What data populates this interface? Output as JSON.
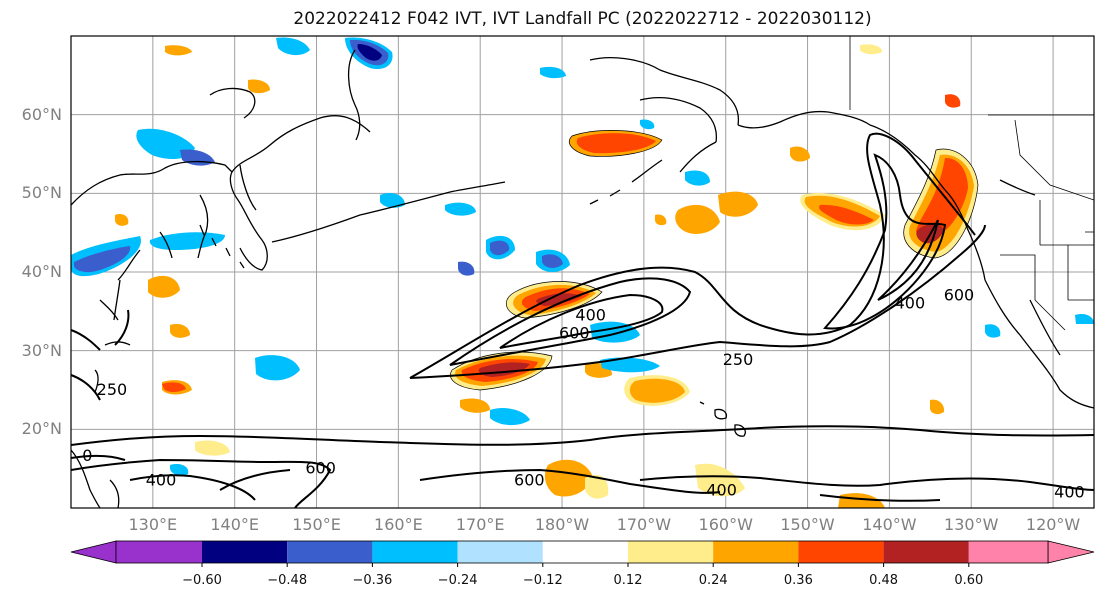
{
  "title": "2022022412 F042 IVT, IVT Landfall PC (2022022712 - 2022030112)",
  "map": {
    "lon_ticks": [
      "130°E",
      "140°E",
      "150°E",
      "160°E",
      "170°E",
      "180°W",
      "170°W",
      "160°W",
      "150°W",
      "140°W",
      "130°W",
      "120°W"
    ],
    "lat_ticks": [
      "60°N",
      "50°N",
      "40°N",
      "30°N",
      "20°N"
    ],
    "contour_levels": [
      250,
      400,
      600
    ],
    "contour_labels": [
      {
        "text": "400",
        "lon": -176.5,
        "lat": 34.5
      },
      {
        "text": "600",
        "lon": -178.5,
        "lat": 32.2
      },
      {
        "text": "250",
        "lon": -158.5,
        "lat": 28.8
      },
      {
        "text": "400",
        "lon": -137.5,
        "lat": 36.0
      },
      {
        "text": "600",
        "lon": -131.5,
        "lat": 37.0
      },
      {
        "text": "250",
        "lon": 125.0,
        "lat": 25.0
      },
      {
        "text": "400",
        "lon": 131.0,
        "lat": 13.5
      },
      {
        "text": "600",
        "lon": 150.5,
        "lat": 15.0
      },
      {
        "text": "600",
        "lon": 176.0,
        "lat": 13.5
      },
      {
        "text": "400",
        "lon": -160.5,
        "lat": 12.2
      },
      {
        "text": "400",
        "lon": -118.0,
        "lat": 12.0
      },
      {
        "text": "0",
        "lon": 122.0,
        "lat": 16.6
      }
    ],
    "colors": {
      "contour": "#000000",
      "coast": "#000000",
      "grid": "#a0a0a0"
    }
  },
  "colorbar": {
    "labels": [
      "−0.60",
      "−0.48",
      "−0.36",
      "−0.24",
      "−0.12",
      "0.12",
      "0.24",
      "0.36",
      "0.48",
      "0.60"
    ],
    "colors": [
      "#9932cc",
      "#000080",
      "#3a5fcd",
      "#00bfff",
      "#b0e2ff",
      "#ffffff",
      "#ffec8b",
      "#ffa500",
      "#ff4500",
      "#b22222",
      "#ff82ab"
    ]
  }
}
